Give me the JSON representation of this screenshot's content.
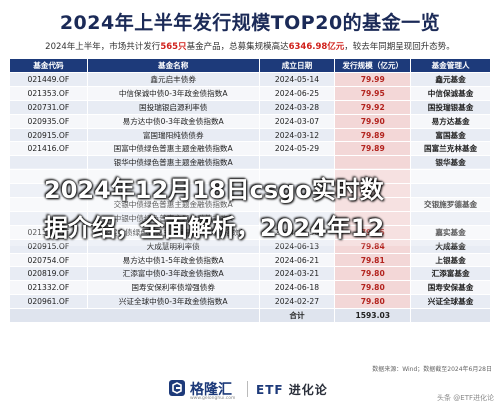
{
  "title": "2024年上半年发行规模TOP20的基金一览",
  "subtitle": {
    "pre": "2024年上半年，市场共计发行",
    "count": "565只",
    "mid": "基金产品，总募集规模高达",
    "amount": "6346.98亿元",
    "post": "，较去年同期呈现回升态势。"
  },
  "headers": [
    "基金代码",
    "基金名称",
    "成立日期",
    "发行规模（亿元）",
    "基金管理人"
  ],
  "rows": [
    {
      "code": "021449.OF",
      "name": "鑫元启丰债券",
      "date": "2024-05-14",
      "amount": "79.99",
      "manager": "鑫元基金"
    },
    {
      "code": "021353.OF",
      "name": "中信保诚中债0-3年政金债指数A",
      "date": "2024-06-25",
      "amount": "79.95",
      "manager": "中信保诚基金"
    },
    {
      "code": "020731.OF",
      "name": "国投瑞银启源利率债",
      "date": "2024-03-28",
      "amount": "79.92",
      "manager": "国投瑞银基金"
    },
    {
      "code": "020935.OF",
      "name": "易方达中债0-3年政金债指数A",
      "date": "2024-03-07",
      "amount": "79.90",
      "manager": "易方达基金"
    },
    {
      "code": "020915.OF",
      "name": "富国瑞阳纯债债券",
      "date": "2024-03-12",
      "amount": "79.89",
      "manager": "富国基金"
    },
    {
      "code": "021416.OF",
      "name": "国富中债绿色普惠主题金融债指数A",
      "date": "2024-05-29",
      "amount": "79.89",
      "manager": "国富兰克林基金"
    },
    {
      "code": "",
      "name": "银华中债绿色普惠主题金融债指数A",
      "date": "",
      "amount": "",
      "manager": "银华基金"
    },
    {
      "code": "",
      "name": "",
      "date": "",
      "amount": "",
      "manager": ""
    },
    {
      "code": "",
      "name": "",
      "date": "",
      "amount": "",
      "manager": ""
    },
    {
      "code": "",
      "name": "交银中债绿色普惠主题金融债指数A",
      "date": "",
      "amount": "",
      "manager": "交银施罗德基金"
    },
    {
      "code": "",
      "name": "中银中债绿色普惠主题金融债指数A",
      "date": "",
      "amount": "",
      "manager": ""
    },
    {
      "code": "021348.OF",
      "name": "嘉实中债绿色普惠主题金融债券优选指数A",
      "date": "2024-05-30",
      "amount": "79.85",
      "manager": "嘉实基金"
    },
    {
      "code": "020915.OF",
      "name": "大成慧明利率债",
      "date": "2024-06-13",
      "amount": "79.84",
      "manager": "大成基金"
    },
    {
      "code": "020754.OF",
      "name": "易方达中债1-5年政金债指数A",
      "date": "2024-06-21",
      "amount": "79.81",
      "manager": "上银基金"
    },
    {
      "code": "020819.OF",
      "name": "汇添富中债0-3年政金债指数A",
      "date": "2024-03-21",
      "amount": "79.80",
      "manager": "汇添富基金"
    },
    {
      "code": "021332.OF",
      "name": "国寿安保利率债增强债券",
      "date": "2024-06-18",
      "amount": "79.80",
      "manager": "国寿安保基金"
    },
    {
      "code": "020961.OF",
      "name": "兴证全球中债0-3年政金债指数A",
      "date": "2024-02-27",
      "amount": "79.80",
      "manager": "兴证全球基金"
    }
  ],
  "total": {
    "label": "合计",
    "amount": "1593.03"
  },
  "overlay": {
    "line1": "2024年12月18日csgo实时数",
    "line2": "据介绍，全面解析，2024年12"
  },
  "source": "数据来源：Wind；数据截至2024年6月28日",
  "footer": {
    "logo_text": "格隆汇",
    "logo_sub": "www.gelonghui.com",
    "brand_etf": "ETF",
    "brand_rest": "进化论",
    "corner": "头条 @ETF进化论"
  },
  "colors": {
    "header_bg": "#1d3a7a",
    "amount_bg": "#f3d7d7",
    "accent_red": "#d0201b"
  }
}
